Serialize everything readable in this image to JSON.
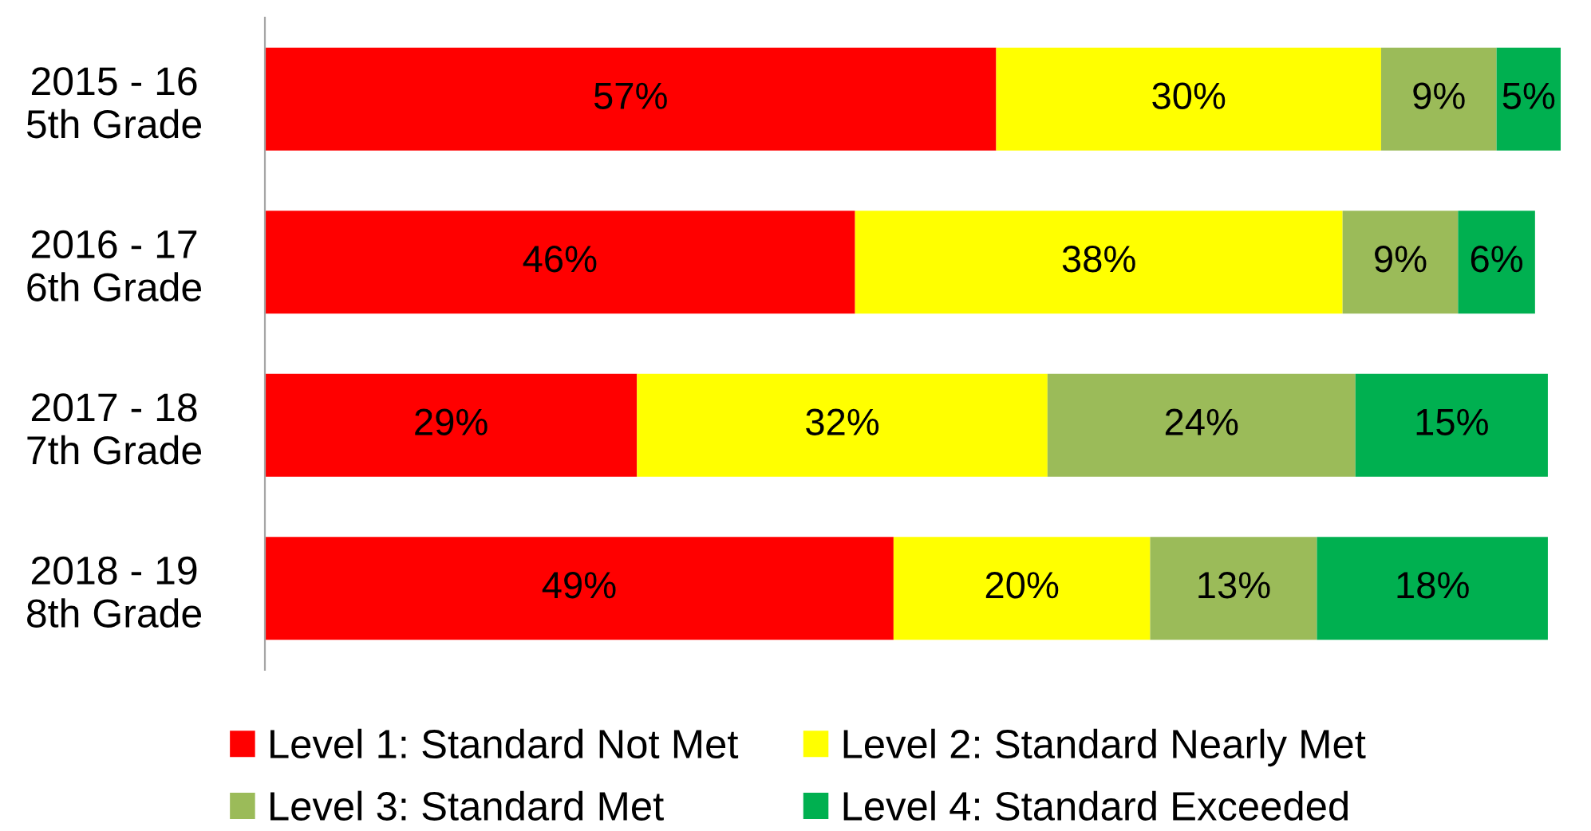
{
  "chart_data": {
    "type": "bar",
    "orientation": "horizontal",
    "stacked": true,
    "tick_labels": "y",
    "grid": false,
    "legend": "bottom",
    "categories": [
      "2015 - 16\n5th Grade",
      "2016 - 17\n6th Grade",
      "2017 - 18\n7th Grade",
      "2018 - 19\n8th Grade"
    ],
    "series": [
      {
        "name": "Level 1: Standard Not Met",
        "color": "#ff0000",
        "values": [
          57,
          46,
          29,
          49
        ],
        "value_labels": [
          "57%",
          "46%",
          "29%",
          "49%"
        ]
      },
      {
        "name": "Level 2: Standard Nearly Met",
        "color": "#ffff00",
        "values": [
          30,
          38,
          32,
          20
        ],
        "value_labels": [
          "30%",
          "38%",
          "32%",
          "20%"
        ]
      },
      {
        "name": "Level 3: Standard Met",
        "color": "#9bbb59",
        "values": [
          9,
          9,
          24,
          13
        ],
        "value_labels": [
          "9%",
          "9%",
          "24%",
          "13%"
        ]
      },
      {
        "name": "Level 4: Standard Exceeded",
        "color": "#00b050",
        "values": [
          5,
          6,
          15,
          18
        ],
        "value_labels": [
          "5%",
          "6%",
          "15%",
          "18%"
        ]
      }
    ]
  }
}
